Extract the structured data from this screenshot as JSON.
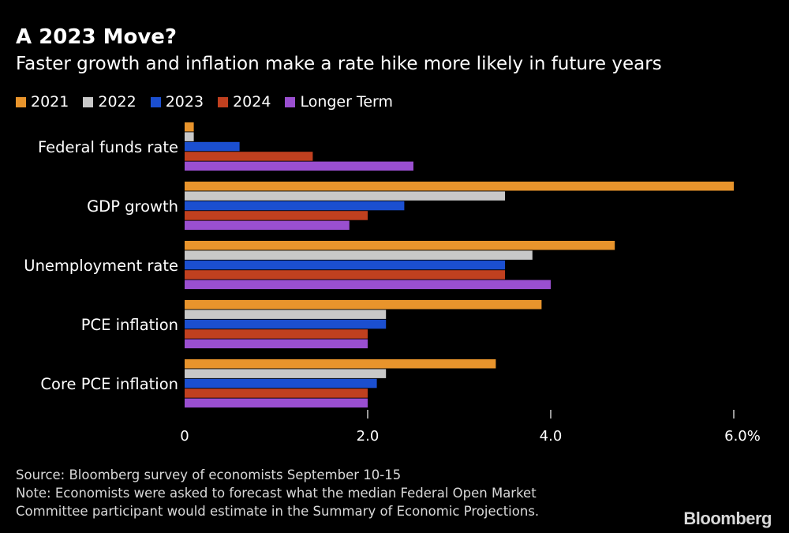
{
  "title": "A 2023 Move?",
  "subtitle": "Faster growth and inflation make a rate hike more likely in future years",
  "source": "Source: Bloomberg survey of economists September 10-15",
  "note_line1": "Note: Economists were asked to forecast what the median Federal Open Market",
  "note_line2": "Committee participant would estimate in the Summary of Economic Projections.",
  "brand": "Bloomberg",
  "chart_data": {
    "type": "bar",
    "orientation": "horizontal",
    "title": "A 2023 Move?",
    "subtitle": "Faster growth and inflation make a rate hike more likely in future years",
    "categories": [
      "Federal funds rate",
      "GDP growth",
      "Unemployment rate",
      "PCE inflation",
      "Core PCE inflation"
    ],
    "series": [
      {
        "name": "2021",
        "color": "#e8942c",
        "values": [
          0.1,
          6.0,
          4.7,
          3.9,
          3.4
        ]
      },
      {
        "name": "2022",
        "color": "#c8c8c8",
        "values": [
          0.1,
          3.5,
          3.8,
          2.2,
          2.2
        ]
      },
      {
        "name": "2023",
        "color": "#1b4fd0",
        "values": [
          0.6,
          2.4,
          3.5,
          2.2,
          2.1
        ]
      },
      {
        "name": "2024",
        "color": "#c0401f",
        "values": [
          1.4,
          2.0,
          3.5,
          2.0,
          2.0
        ]
      },
      {
        "name": "Longer Term",
        "color": "#9a4fd0",
        "values": [
          2.5,
          1.8,
          4.0,
          2.0,
          2.0
        ]
      }
    ],
    "xlim": [
      0,
      6.0
    ],
    "ticks": [
      {
        "value": 0,
        "label": "0"
      },
      {
        "value": 2.0,
        "label": "2.0"
      },
      {
        "value": 4.0,
        "label": "4.0"
      },
      {
        "value": 6.0,
        "label": "6.0%"
      }
    ],
    "legend_position": "top-left",
    "grid": false
  }
}
